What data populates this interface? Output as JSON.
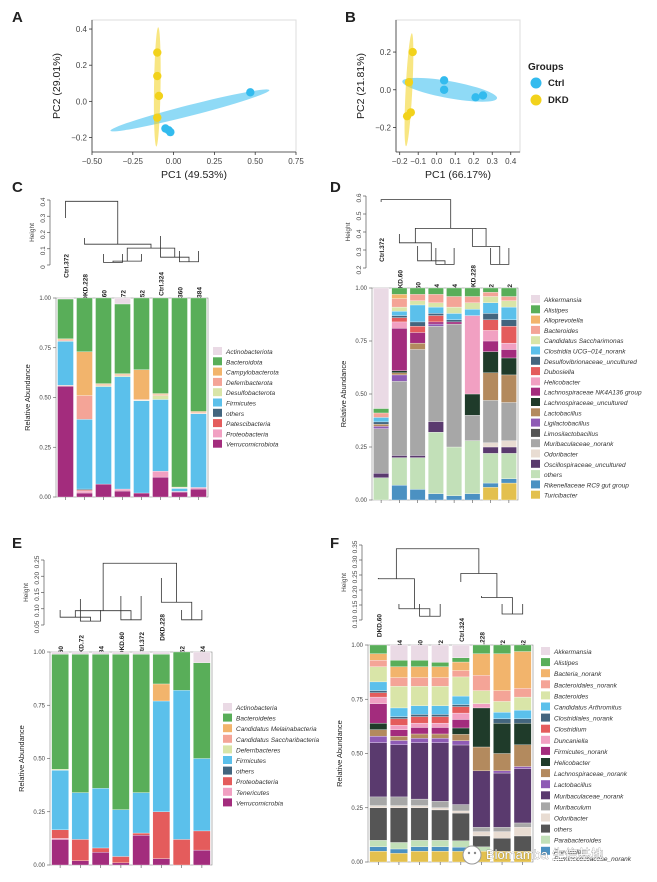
{
  "panel_letters": [
    "A",
    "B",
    "C",
    "D",
    "E",
    "F"
  ],
  "groups_legend": {
    "title": "Groups",
    "items": [
      {
        "label": "Ctrl",
        "color": "#33BBEE"
      },
      {
        "label": "DKD",
        "color": "#F2D21B"
      }
    ]
  },
  "watermark": "Biomamba 生信基地",
  "chart_data": [
    {
      "id": "A",
      "type": "scatter",
      "xlabel": "PC1 (49.53%)",
      "ylabel": "PC2 (29.01%)",
      "xlim": [
        -0.5,
        0.75
      ],
      "ylim": [
        -0.28,
        0.45
      ],
      "xticks": [
        -0.5,
        -0.25,
        0.0,
        0.25,
        0.5,
        0.75
      ],
      "xtick_labels": [
        "−0.50",
        "−0.25",
        "0.00",
        "0.25",
        "0.50",
        "0.75"
      ],
      "yticks": [
        -0.2,
        0.0,
        0.2,
        0.4
      ],
      "ytick_labels": [
        "−0.2",
        "0.0",
        "0.2",
        "0.4"
      ],
      "series": [
        {
          "name": "Ctrl",
          "color": "#33BBEE",
          "points": [
            [
              -0.05,
              -0.15
            ],
            [
              -0.03,
              -0.16
            ],
            [
              -0.02,
              -0.17
            ],
            [
              0.47,
              0.05
            ]
          ],
          "ellipse": {
            "cx": 0.1,
            "cy": -0.05,
            "rx": 0.5,
            "ry": 0.03,
            "angle_deg": 13
          }
        },
        {
          "name": "DKD",
          "color": "#F2D21B",
          "points": [
            [
              -0.1,
              0.27
            ],
            [
              -0.1,
              0.14
            ],
            [
              -0.09,
              0.03
            ],
            [
              -0.1,
              -0.09
            ]
          ],
          "ellipse": {
            "cx": -0.1,
            "cy": 0.08,
            "rx": 0.33,
            "ry": 0.02,
            "angle_deg": 89
          }
        }
      ]
    },
    {
      "id": "B",
      "type": "scatter",
      "xlabel": "PC1 (66.17%)",
      "ylabel": "PC2 (21.81%)",
      "xlim": [
        -0.22,
        0.45
      ],
      "ylim": [
        -0.33,
        0.37
      ],
      "xticks": [
        -0.2,
        -0.1,
        0.0,
        0.1,
        0.2,
        0.3,
        0.4
      ],
      "xtick_labels": [
        "−0.2",
        "−0.1",
        "0.0",
        "0.1",
        "0.2",
        "0.3",
        "0.4"
      ],
      "yticks": [
        -0.2,
        0.0,
        0.2
      ],
      "ytick_labels": [
        "−0.2",
        "0.0",
        "0.2"
      ],
      "series": [
        {
          "name": "Ctrl",
          "color": "#33BBEE",
          "points": [
            [
              0.04,
              0.05
            ],
            [
              0.04,
              0.0
            ],
            [
              0.21,
              -0.04
            ],
            [
              0.25,
              -0.03
            ]
          ],
          "ellipse": {
            "cx": 0.07,
            "cy": 0.0,
            "rx": 0.26,
            "ry": 0.045,
            "angle_deg": -10
          }
        },
        {
          "name": "DKD",
          "color": "#F2D21B",
          "points": [
            [
              -0.13,
              0.2
            ],
            [
              -0.15,
              0.04
            ],
            [
              -0.14,
              -0.12
            ],
            [
              -0.16,
              -0.14
            ]
          ],
          "ellipse": {
            "cx": -0.15,
            "cy": 0.0,
            "rx": 0.3,
            "ry": 0.018,
            "angle_deg": 87
          }
        }
      ]
    },
    {
      "id": "C",
      "type": "bar",
      "ylabel": "Relative Abundance",
      "dendro_ylabel": "Height",
      "dendro_ticks": [
        "0",
        "0.1",
        "0.2",
        "0.3",
        "0.4"
      ],
      "samples": [
        "Ctrl.372",
        "DKD.228",
        "DKD.60",
        "DKD.72",
        "DKD.252",
        "Ctrl.324",
        "Ctrl.360",
        "Ctrl.384"
      ],
      "yticks": [
        "0.00",
        "0.25",
        "0.50",
        "0.75",
        "1.00"
      ],
      "legend": [
        "Actinobacteriota",
        "Bacteroidota",
        "Campylobacterota",
        "Deferribacterota",
        "Desulfobacterota",
        "Firmicutes",
        "others",
        "Patescibacteria",
        "Proteobacteria",
        "Verrucomicrobiota"
      ],
      "colors": [
        "#EADAE5",
        "#59AE59",
        "#F2B46C",
        "#F4A497",
        "#D9E5A8",
        "#5BC0EB",
        "#43657E",
        "#E45C5C",
        "#F1A0C2",
        "#A32C7D"
      ],
      "stack_order": [
        9,
        8,
        7,
        6,
        5,
        4,
        3,
        2,
        1,
        0
      ],
      "data": [
        [
          0.005,
          0.2,
          0.005,
          0.005,
          0.003,
          0.22,
          0.002,
          0.003,
          0.0,
          0.557
        ],
        [
          0.0,
          0.27,
          0.22,
          0.12,
          0.0,
          0.35,
          0.005,
          0.005,
          0.01,
          0.02
        ],
        [
          0.0,
          0.43,
          0.005,
          0.005,
          0.005,
          0.49,
          0.0,
          0.0,
          0.0,
          0.065
        ],
        [
          0.03,
          0.35,
          0.005,
          0.005,
          0.005,
          0.565,
          0.0,
          0.0,
          0.01,
          0.03
        ],
        [
          0.0,
          0.36,
          0.15,
          0.003,
          0.003,
          0.464,
          0.0,
          0.0,
          0.0,
          0.02
        ],
        [
          0.0,
          0.48,
          0.005,
          0.005,
          0.02,
          0.36,
          0.0,
          0.0,
          0.03,
          0.1
        ],
        [
          0.0,
          0.95,
          0.003,
          0.002,
          0.002,
          0.015,
          0.0,
          0.0,
          0.003,
          0.025
        ],
        [
          0.0,
          0.57,
          0.005,
          0.005,
          0.002,
          0.37,
          0.0,
          0.0,
          0.008,
          0.04
        ]
      ]
    },
    {
      "id": "D",
      "type": "bar",
      "ylabel": "Relative Abundance",
      "dendro_ylabel": "Height",
      "dendro_ticks": [
        "0.2",
        "0.3",
        "0.4",
        "0.5",
        "0.6"
      ],
      "samples": [
        "Ctrl.372",
        "DKD.60",
        "Ctrl.360",
        "Ctrl.324",
        "Ctrl.384",
        "DKD.228",
        "DKD.72",
        "DKD.252"
      ],
      "yticks": [
        "0.00",
        "0.25",
        "0.50",
        "0.75",
        "1.00"
      ],
      "legend": [
        "Akkermansia",
        "Alistipes",
        "Alloprevotella",
        "Bacteroides",
        "Candidatus Saccharimonas",
        "Clostridia UCG−014_norank",
        "Desulfovibrionaceae_uncultured",
        "Dubosiella",
        "Helicobacter",
        "Lachnospiraceae NK4A136 group",
        "Lachnospiraceae_uncultured",
        "Lactobacillus",
        "Ligilactobacillus",
        "Limosilactobacillus",
        "Muribaculaceae_norank",
        "Odoribacter",
        "Oscillospiraceae_uncultured",
        "others",
        "Rikenellaceae RC9 gut group",
        "Turicibacter"
      ],
      "colors": [
        "#EADAE5",
        "#59AE59",
        "#F2B46C",
        "#F4A497",
        "#D9E5A8",
        "#5BC0EB",
        "#43657E",
        "#E45C5C",
        "#F1A0C2",
        "#A32C7D",
        "#1F3B2A",
        "#B38A5E",
        "#8E5BB5",
        "#555555",
        "#A7A7A7",
        "#E8DCD2",
        "#5A3A6E",
        "#C2E0B8",
        "#4B91C2",
        "#E3C04E"
      ],
      "stack_order": [
        19,
        18,
        17,
        16,
        15,
        14,
        13,
        12,
        11,
        10,
        9,
        8,
        7,
        6,
        5,
        4,
        3,
        2,
        1,
        0
      ],
      "data": [
        [
          0.54,
          0.02,
          0.0,
          0.02,
          0.0,
          0.02,
          0.01,
          0.0,
          0.0,
          0.0,
          0.0,
          0.01,
          0.01,
          0.0,
          0.2,
          0.0,
          0.02,
          0.1,
          0.0,
          0.0
        ],
        [
          0.0,
          0.03,
          0.02,
          0.04,
          0.02,
          0.02,
          0.01,
          0.02,
          0.03,
          0.2,
          0.01,
          0.01,
          0.03,
          0.0,
          0.35,
          0.0,
          0.01,
          0.13,
          0.07,
          0.0
        ],
        [
          0.0,
          0.03,
          0.0,
          0.03,
          0.02,
          0.08,
          0.02,
          0.03,
          0.0,
          0.05,
          0.0,
          0.03,
          0.0,
          0.0,
          0.5,
          0.0,
          0.01,
          0.15,
          0.05,
          0.0
        ],
        [
          0.0,
          0.03,
          0.0,
          0.04,
          0.02,
          0.03,
          0.01,
          0.03,
          0.0,
          0.01,
          0.0,
          0.0,
          0.01,
          0.0,
          0.45,
          0.0,
          0.05,
          0.29,
          0.03,
          0.0
        ],
        [
          0.0,
          0.04,
          0.0,
          0.05,
          0.03,
          0.03,
          0.01,
          0.0,
          0.0,
          0.01,
          0.0,
          0.0,
          0.0,
          0.0,
          0.58,
          0.0,
          0.0,
          0.23,
          0.02,
          0.0
        ],
        [
          0.0,
          0.04,
          0.0,
          0.03,
          0.03,
          0.03,
          0.0,
          0.0,
          0.37,
          0.0,
          0.1,
          0.0,
          0.0,
          0.0,
          0.12,
          0.0,
          0.0,
          0.25,
          0.03,
          0.0
        ],
        [
          0.0,
          0.02,
          0.0,
          0.02,
          0.03,
          0.05,
          0.03,
          0.05,
          0.05,
          0.05,
          0.1,
          0.13,
          0.0,
          0.0,
          0.2,
          0.02,
          0.03,
          0.14,
          0.02,
          0.06
        ],
        [
          0.0,
          0.04,
          0.0,
          0.02,
          0.03,
          0.06,
          0.03,
          0.08,
          0.03,
          0.04,
          0.08,
          0.13,
          0.0,
          0.0,
          0.18,
          0.03,
          0.03,
          0.12,
          0.02,
          0.08
        ]
      ]
    },
    {
      "id": "E",
      "type": "bar",
      "ylabel": "Relative Abundance",
      "dendro_ylabel": "Height",
      "dendro_ticks": [
        "0.05",
        "0.10",
        "0.15",
        "0.20",
        "0.25"
      ],
      "samples": [
        "Ctrl.360",
        "DKD.72",
        "Ctrl.384",
        "DKD.60",
        "Ctrl.372",
        "DKD.228",
        "DKD.252",
        "Ctrl.324"
      ],
      "yticks": [
        "0.00",
        "0.25",
        "0.50",
        "0.75",
        "1.00"
      ],
      "legend": [
        "Actinobacteria",
        "Bacteroidetes",
        "Candidatus Melainabacteria",
        "Candidatus Saccharibacteria",
        "Deferribacteres",
        "Firmicutes",
        "others",
        "Proteobacteria",
        "Tenericutes",
        "Verrucomicrobia"
      ],
      "colors": [
        "#EADAE5",
        "#59AE59",
        "#F2B46C",
        "#F4A497",
        "#D9E5A8",
        "#5BC0EB",
        "#43657E",
        "#E45C5C",
        "#F1A0C2",
        "#A32C7D"
      ],
      "stack_order": [
        9,
        8,
        7,
        6,
        5,
        4,
        3,
        2,
        1,
        0
      ],
      "data": [
        [
          0.01,
          0.54,
          0.0,
          0.0,
          0.005,
          0.28,
          0.0,
          0.04,
          0.005,
          0.12
        ],
        [
          0.01,
          0.65,
          0.0,
          0.0,
          0.0,
          0.22,
          0.0,
          0.1,
          0.0,
          0.02
        ],
        [
          0.01,
          0.63,
          0.0,
          0.0,
          0.0,
          0.28,
          0.0,
          0.02,
          0.0,
          0.06
        ],
        [
          0.01,
          0.73,
          0.0,
          0.0,
          0.0,
          0.22,
          0.0,
          0.03,
          0.0,
          0.01
        ],
        [
          0.01,
          0.65,
          0.0,
          0.0,
          0.0,
          0.19,
          0.0,
          0.01,
          0.0,
          0.14
        ],
        [
          0.01,
          0.14,
          0.08,
          0.0,
          0.0,
          0.52,
          0.0,
          0.22,
          0.0,
          0.03
        ],
        [
          0.0,
          0.18,
          0.0,
          0.0,
          0.0,
          0.7,
          0.0,
          0.12,
          0.0,
          0.0
        ],
        [
          0.05,
          0.45,
          0.0,
          0.0,
          0.0,
          0.34,
          0.0,
          0.09,
          0.0,
          0.07
        ]
      ]
    },
    {
      "id": "F",
      "type": "bar",
      "ylabel": "Relative Abundance",
      "dendro_ylabel": "Height",
      "dendro_ticks": [
        "0.10",
        "0.15",
        "0.20",
        "0.25",
        "0.30",
        "0.35"
      ],
      "samples": [
        "DKD.60",
        "Ctrl.384",
        "Ctrl.360",
        "Ctrl.372",
        "Ctrl.324",
        "DKD.228",
        "DKD.72",
        "DKD.252"
      ],
      "yticks": [
        "0.00",
        "0.25",
        "0.50",
        "0.75",
        "1.00"
      ],
      "legend": [
        "Akkermansia",
        "Alistipes",
        "Bacteria_norank",
        "Bacteroidales_norank",
        "Bacteroides",
        "Candidatus Arthromitus",
        "Clostridiales_norank",
        "Clostridium",
        "Duncaniella",
        "Firmicutes_norank",
        "Helicobacter",
        "Lachnospiraceae_norank",
        "Lactobacillus",
        "Muribaculaceae_norank",
        "Muribaculum",
        "Odoribacter",
        "others",
        "Parabacteroides",
        "Prevotella"
      ],
      "legend_obscured": [
        "Ruminococcaceae_norank"
      ],
      "colors": [
        "#EADAE5",
        "#59AE59",
        "#F2B46C",
        "#F4A497",
        "#D9E5A8",
        "#5BC0EB",
        "#43657E",
        "#E45C5C",
        "#F1A0C2",
        "#A32C7D",
        "#1F3B2A",
        "#B38A5E",
        "#8E5BB5",
        "#5A3A6E",
        "#A7A7A7",
        "#E8DCD2",
        "#555555",
        "#C2E0B8",
        "#4B91C2",
        "#E3C04E"
      ],
      "stack_order": [
        19,
        18,
        17,
        16,
        15,
        14,
        13,
        12,
        11,
        10,
        9,
        8,
        7,
        6,
        5,
        4,
        3,
        2,
        1,
        0
      ],
      "data": [
        [
          0.0,
          0.04,
          0.03,
          0.03,
          0.07,
          0.04,
          0.01,
          0.02,
          0.03,
          0.09,
          0.03,
          0.03,
          0.03,
          0.25,
          0.04,
          0.01,
          0.15,
          0.03,
          0.02,
          0.05
        ],
        [
          0.07,
          0.03,
          0.05,
          0.04,
          0.1,
          0.04,
          0.01,
          0.03,
          0.02,
          0.03,
          0.0,
          0.02,
          0.02,
          0.24,
          0.04,
          0.01,
          0.16,
          0.03,
          0.02,
          0.04
        ],
        [
          0.07,
          0.03,
          0.05,
          0.04,
          0.09,
          0.04,
          0.01,
          0.03,
          0.02,
          0.03,
          0.0,
          0.02,
          0.02,
          0.26,
          0.03,
          0.01,
          0.15,
          0.03,
          0.02,
          0.05
        ],
        [
          0.08,
          0.02,
          0.05,
          0.04,
          0.09,
          0.04,
          0.01,
          0.03,
          0.02,
          0.03,
          0.0,
          0.02,
          0.02,
          0.27,
          0.03,
          0.01,
          0.14,
          0.03,
          0.02,
          0.05
        ],
        [
          0.06,
          0.02,
          0.04,
          0.03,
          0.09,
          0.04,
          0.01,
          0.03,
          0.03,
          0.04,
          0.03,
          0.03,
          0.02,
          0.28,
          0.03,
          0.01,
          0.13,
          0.03,
          0.02,
          0.05
        ],
        [
          0.0,
          0.04,
          0.1,
          0.07,
          0.06,
          0.0,
          0.0,
          0.0,
          0.02,
          0.0,
          0.18,
          0.11,
          0.0,
          0.26,
          0.02,
          0.02,
          0.05,
          0.02,
          0.0,
          0.05
        ],
        [
          0.0,
          0.04,
          0.17,
          0.05,
          0.05,
          0.03,
          0.02,
          0.0,
          0.0,
          0.0,
          0.14,
          0.08,
          0.01,
          0.25,
          0.02,
          0.03,
          0.06,
          0.0,
          0.0,
          0.05
        ],
        [
          0.0,
          0.03,
          0.17,
          0.04,
          0.06,
          0.04,
          0.02,
          0.0,
          0.0,
          0.0,
          0.1,
          0.1,
          0.01,
          0.25,
          0.02,
          0.04,
          0.07,
          0.0,
          0.0,
          0.05
        ]
      ]
    }
  ]
}
